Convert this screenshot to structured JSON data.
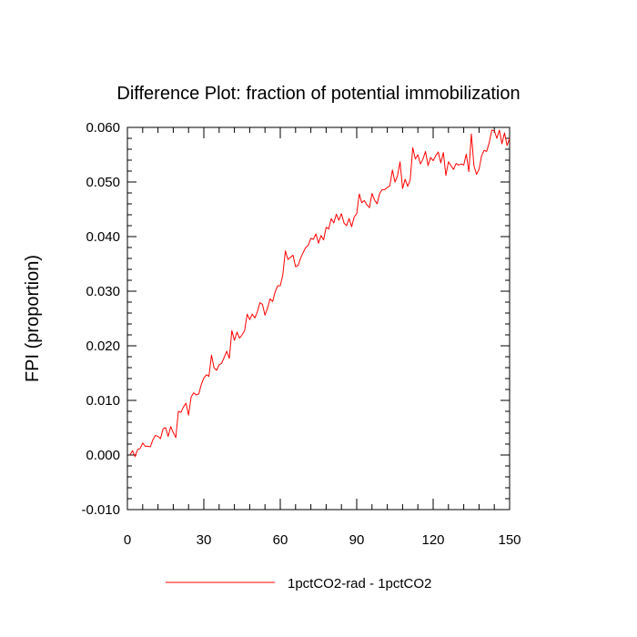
{
  "chart_data": {
    "type": "line",
    "title": "Difference Plot: fraction of potential immobilization",
    "xlabel": "",
    "ylabel": "FPI  (proportion)",
    "xlim": [
      0,
      150
    ],
    "ylim": [
      -0.01,
      0.06
    ],
    "x_ticks": [
      0,
      30,
      60,
      90,
      120,
      150
    ],
    "x_tick_labels": [
      "0",
      "30",
      "60",
      "90",
      "120",
      "150"
    ],
    "y_ticks": [
      -0.01,
      0.0,
      0.01,
      0.02,
      0.03,
      0.04,
      0.05,
      0.06
    ],
    "y_tick_labels": [
      "-0.010",
      "0.000",
      "0.010",
      "0.020",
      "0.030",
      "0.040",
      "0.050",
      "0.060"
    ],
    "grid": false,
    "legend_position": "bottom-center",
    "series": [
      {
        "name": "1pctCO2-rad - 1pctCO2",
        "color": "#ff0000",
        "x": [
          1,
          2,
          3,
          4,
          5,
          6,
          7,
          8,
          9,
          10,
          11,
          12,
          13,
          14,
          15,
          16,
          17,
          18,
          19,
          20,
          21,
          22,
          23,
          24,
          25,
          26,
          27,
          28,
          29,
          30,
          31,
          32,
          33,
          34,
          35,
          36,
          37,
          38,
          39,
          40,
          41,
          42,
          43,
          44,
          45,
          46,
          47,
          48,
          49,
          50,
          51,
          52,
          53,
          54,
          55,
          56,
          57,
          58,
          59,
          60,
          61,
          62,
          63,
          64,
          65,
          66,
          67,
          68,
          69,
          70,
          71,
          72,
          73,
          74,
          75,
          76,
          77,
          78,
          79,
          80,
          81,
          82,
          83,
          84,
          85,
          86,
          87,
          88,
          89,
          90,
          91,
          92,
          93,
          94,
          95,
          96,
          97,
          98,
          99,
          100,
          101,
          102,
          103,
          104,
          105,
          106,
          107,
          108,
          109,
          110,
          111,
          112,
          113,
          114,
          115,
          116,
          117,
          118,
          119,
          120,
          121,
          122,
          123,
          124,
          125,
          126,
          127,
          128,
          129,
          130,
          131,
          132,
          133,
          134,
          135,
          136,
          137,
          138,
          139,
          140,
          141,
          142,
          143,
          144,
          145,
          146,
          147,
          148,
          149,
          150
        ],
        "y": [
          0.0,
          0.0008,
          -0.0003,
          0.001,
          0.0012,
          0.0022,
          0.0016,
          0.0016,
          0.0015,
          0.0028,
          0.0036,
          0.0034,
          0.003,
          0.0048,
          0.005,
          0.0034,
          0.0052,
          0.0041,
          0.0032,
          0.008,
          0.0078,
          0.0088,
          0.0095,
          0.0073,
          0.0106,
          0.0114,
          0.011,
          0.0112,
          0.0129,
          0.0141,
          0.0147,
          0.0144,
          0.0183,
          0.016,
          0.0155,
          0.0165,
          0.0168,
          0.0179,
          0.019,
          0.0177,
          0.0228,
          0.021,
          0.0225,
          0.0214,
          0.022,
          0.0228,
          0.0258,
          0.0248,
          0.0258,
          0.0251,
          0.0262,
          0.0279,
          0.0276,
          0.0256,
          0.0269,
          0.0286,
          0.0281,
          0.0299,
          0.031,
          0.031,
          0.033,
          0.0374,
          0.0358,
          0.0362,
          0.0366,
          0.0345,
          0.0347,
          0.0361,
          0.0371,
          0.038,
          0.0384,
          0.0397,
          0.0395,
          0.0405,
          0.0388,
          0.0402,
          0.0394,
          0.0417,
          0.0414,
          0.0433,
          0.0425,
          0.0441,
          0.043,
          0.0442,
          0.0425,
          0.042,
          0.0433,
          0.0418,
          0.0436,
          0.0442,
          0.0478,
          0.0462,
          0.0466,
          0.0458,
          0.0453,
          0.0479,
          0.0467,
          0.046,
          0.0479,
          0.0486,
          0.0486,
          0.049,
          0.0493,
          0.0522,
          0.05,
          0.0511,
          0.0537,
          0.0488,
          0.0505,
          0.0492,
          0.0504,
          0.0563,
          0.0542,
          0.055,
          0.0533,
          0.0542,
          0.0556,
          0.053,
          0.0545,
          0.0539,
          0.0548,
          0.0555,
          0.0535,
          0.0554,
          0.0512,
          0.0537,
          0.053,
          0.0523,
          0.0534,
          0.0531,
          0.0533,
          0.0531,
          0.0551,
          0.0519,
          0.0588,
          0.053,
          0.0514,
          0.0523,
          0.0548,
          0.0558,
          0.0556,
          0.0572,
          0.0595,
          0.0594,
          0.058,
          0.0595,
          0.057,
          0.059,
          0.0567,
          0.058
        ]
      }
    ]
  }
}
